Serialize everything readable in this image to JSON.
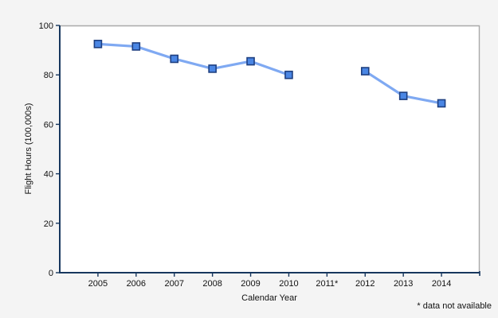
{
  "chart_data": {
    "type": "line",
    "title": "",
    "xlabel": "Calendar Year",
    "ylabel": "Flight Hours (100,000s)",
    "footnote": "* data not available",
    "categories": [
      "2005",
      "2006",
      "2007",
      "2008",
      "2009",
      "2010",
      "2011*",
      "2012",
      "2013",
      "2014"
    ],
    "series": [
      {
        "name": "Flight Hours",
        "values": [
          92.5,
          91.5,
          86.5,
          82.5,
          85.5,
          80,
          null,
          81.5,
          71.5,
          68.5
        ]
      }
    ],
    "missing_data_note": "2011 value not plotted (data not available)",
    "ylim": [
      0,
      100
    ],
    "yticks": [
      0,
      20,
      40,
      60,
      80,
      100
    ],
    "grid": false,
    "legend_position": "none",
    "colors": {
      "line": "#7fa9f2",
      "marker_fill": "#4a86e4",
      "marker_border": "#1e3f80",
      "axis": "#17375e",
      "plot_border": "#a9a9a9",
      "plot_background": "#ffffff",
      "page_background": "#f4f4f4",
      "text": "#111111"
    }
  }
}
